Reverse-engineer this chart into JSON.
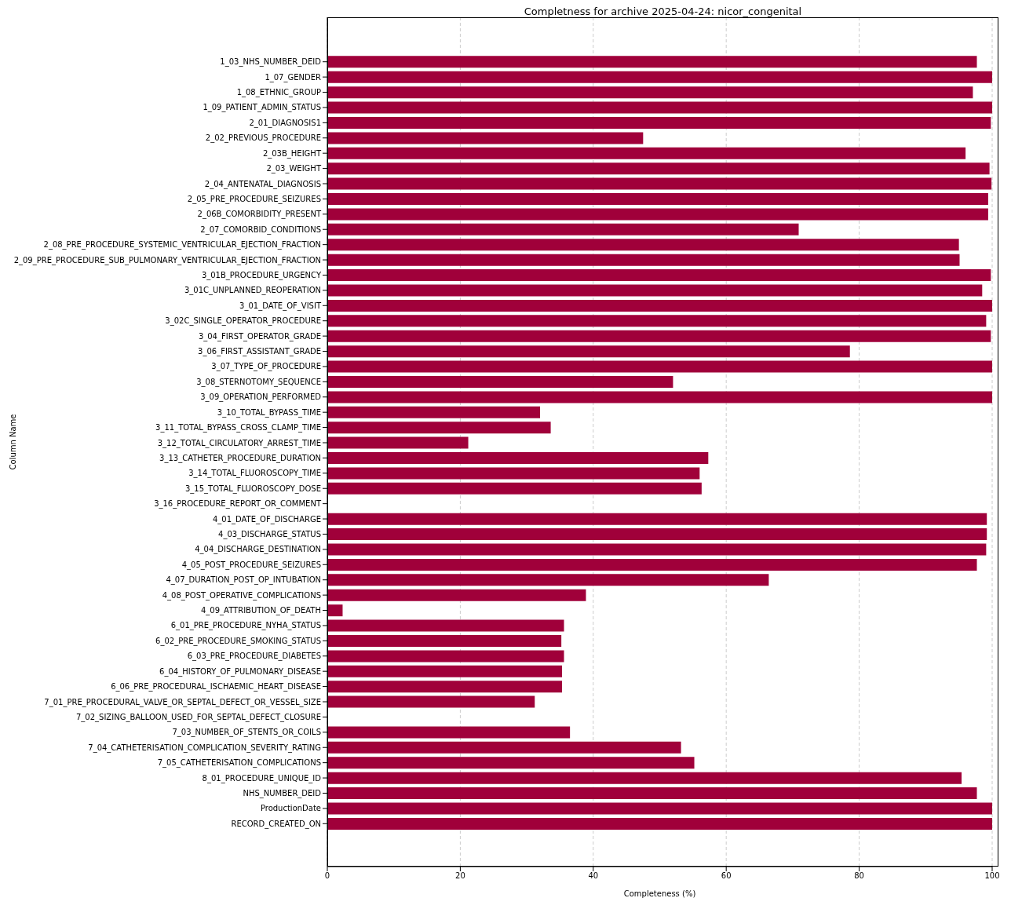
{
  "chart_data": {
    "type": "bar",
    "orientation": "horizontal",
    "title": "Completness for archive 2025-04-24: nicor_congenital",
    "xlabel": "Completeness (%)",
    "ylabel": "Column Name",
    "categories": [
      "1_03_NHS_NUMBER_DEID",
      "1_07_GENDER",
      "1_08_ETHNIC_GROUP",
      "1_09_PATIENT_ADMIN_STATUS",
      "2_01_DIAGNOSIS1",
      "2_02_PREVIOUS_PROCEDURE",
      "2_03B_HEIGHT",
      "2_03_WEIGHT",
      "2_04_ANTENATAL_DIAGNOSIS",
      "2_05_PRE_PROCEDURE_SEIZURES",
      "2_06B_COMORBIDITY_PRESENT",
      "2_07_COMORBID_CONDITIONS",
      "2_08_PRE_PROCEDURE_SYSTEMIC_VENTRICULAR_EJECTION_FRACTION",
      "2_09_PRE_PROCEDURE_SUB_PULMONARY_VENTRICULAR_EJECTION_FRACTION",
      "3_01B_PROCEDURE_URGENCY",
      "3_01C_UNPLANNED_REOPERATION",
      "3_01_DATE_OF_VISIT",
      "3_02C_SINGLE_OPERATOR_PROCEDURE",
      "3_04_FIRST_OPERATOR_GRADE",
      "3_06_FIRST_ASSISTANT_GRADE",
      "3_07_TYPE_OF_PROCEDURE",
      "3_08_STERNOTOMY_SEQUENCE",
      "3_09_OPERATION_PERFORMED",
      "3_10_TOTAL_BYPASS_TIME",
      "3_11_TOTAL_BYPASS_CROSS_CLAMP_TIME",
      "3_12_TOTAL_CIRCULATORY_ARREST_TIME",
      "3_13_CATHETER_PROCEDURE_DURATION",
      "3_14_TOTAL_FLUOROSCOPY_TIME",
      "3_15_TOTAL_FLUOROSCOPY_DOSE",
      "3_16_PROCEDURE_REPORT_OR_COMMENT",
      "4_01_DATE_OF_DISCHARGE",
      "4_03_DISCHARGE_STATUS",
      "4_04_DISCHARGE_DESTINATION",
      "4_05_POST_PROCEDURE_SEIZURES",
      "4_07_DURATION_POST_OP_INTUBATION",
      "4_08_POST_OPERATIVE_COMPLICATIONS",
      "4_09_ATTRIBUTION_OF_DEATH",
      "6_01_PRE_PROCEDURE_NYHA_STATUS",
      "6_02_PRE_PROCEDURE_SMOKING_STATUS",
      "6_03_PRE_PROCEDURE_DIABETES",
      "6_04_HISTORY_OF_PULMONARY_DISEASE",
      "6_06_PRE_PROCEDURAL_ISCHAEMIC_HEART_DISEASE",
      "7_01_PRE_PROCEDURAL_VALVE_OR_SEPTAL_DEFECT_OR_VESSEL_SIZE",
      "7_02_SIZING_BALLOON_USED_FOR_SEPTAL_DEFECT_CLOSURE",
      "7_03_NUMBER_OF_STENTS_OR_COILS",
      "7_04_CATHETERISATION_COMPLICATION_SEVERITY_RATING",
      "7_05_CATHETERISATION_COMPLICATIONS",
      "8_01_PROCEDURE_UNIQUE_ID",
      "NHS_NUMBER_DEID",
      "ProductionDate",
      "RECORD_CREATED_ON"
    ],
    "values": [
      97.7,
      100,
      97.1,
      100,
      99.8,
      47.5,
      96.0,
      99.6,
      99.9,
      99.4,
      99.4,
      70.9,
      95.0,
      95.1,
      99.8,
      98.5,
      100,
      99.1,
      99.8,
      78.6,
      100,
      52.0,
      100,
      32.0,
      33.6,
      21.2,
      57.3,
      56.0,
      56.3,
      0,
      99.2,
      99.2,
      99.1,
      97.7,
      66.4,
      38.9,
      2.3,
      35.6,
      35.2,
      35.6,
      35.3,
      35.3,
      31.2,
      0,
      36.5,
      53.2,
      55.2,
      95.4,
      97.7,
      100,
      100
    ],
    "color": "#a0003a",
    "xlim": [
      0,
      100
    ],
    "xticks": [
      0,
      20,
      40,
      60,
      80,
      100
    ],
    "grid": "x"
  }
}
